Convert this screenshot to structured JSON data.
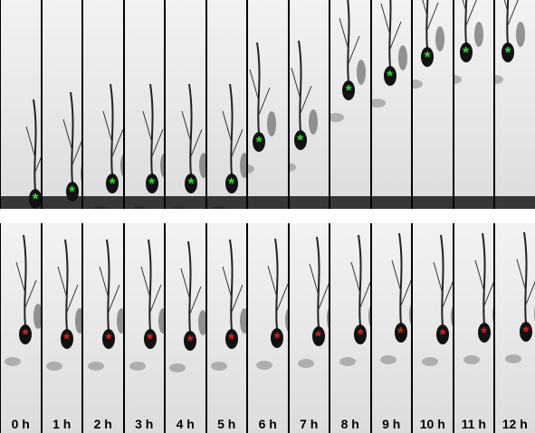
{
  "image": {
    "description_id": "two time-lapse microscopy rows of a migrating neuron",
    "top_row": {
      "marker_color": "#33dd33",
      "marker_glyph": "*"
    },
    "bottom_row": {
      "marker_color": "#e02020",
      "marker_glyph": "*"
    },
    "time_labels": [
      "0 h",
      "1 h",
      "2 h",
      "3 h",
      "4 h",
      "5 h",
      "6 h",
      "7 h",
      "8 h",
      "9 h",
      "10 h",
      "11 h",
      "12 h"
    ]
  }
}
